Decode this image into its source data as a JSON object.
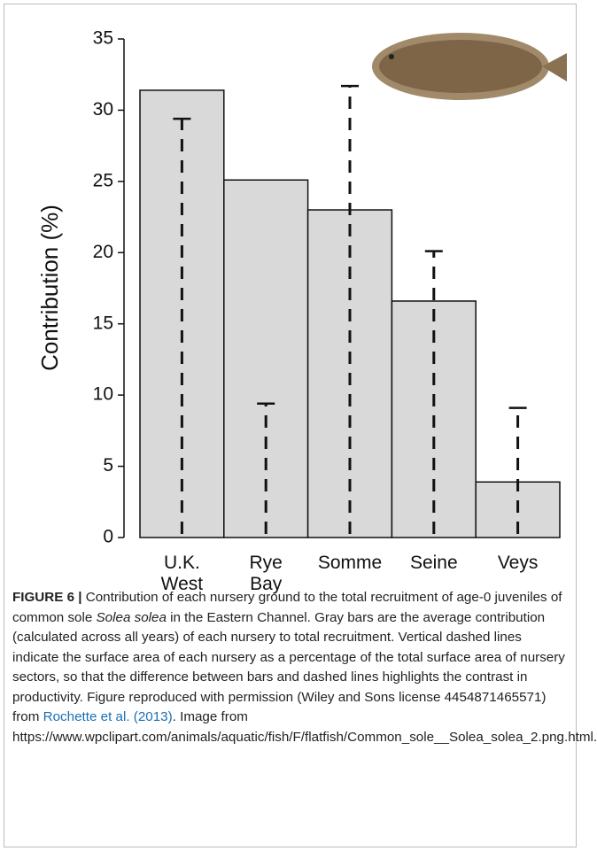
{
  "chart_data": {
    "type": "bar",
    "y_label": "Contribution (%)",
    "categories": [
      "U.K. West",
      "Rye Bay",
      "Somme",
      "Seine",
      "Veys"
    ],
    "values": [
      31.4,
      25.1,
      23.0,
      16.6,
      3.9
    ],
    "dashed_values": [
      29.4,
      9.4,
      31.7,
      20.1,
      9.1
    ],
    "color": "#d9d9d9",
    "ylim": [
      0,
      35
    ],
    "yticks": [
      0,
      5,
      10,
      15,
      20,
      25,
      30,
      35
    ]
  },
  "caption": {
    "label": "FIGURE 6 |",
    "parts": [
      " Contribution of each nursery ground to the total recruitment of age-0 juveniles of common sole ",
      "Solea solea",
      " in the Eastern Channel. Gray bars are the average contribution (calculated across all years) of each nursery to total recruitment. Vertical dashed lines indicate the surface area of each nursery as a percentage of the total surface area of nursery sectors, so that the difference between bars and dashed lines highlights the contrast in productivity. Figure reproduced with permission (Wiley and Sons license 4454871465571) from ",
      "Rochette et al. (2013)",
      ". Image from https://www.wpclipart.com/animals/aquatic/fish/F/flatfish/Common_sole__Solea_solea_2.png.html."
    ]
  }
}
